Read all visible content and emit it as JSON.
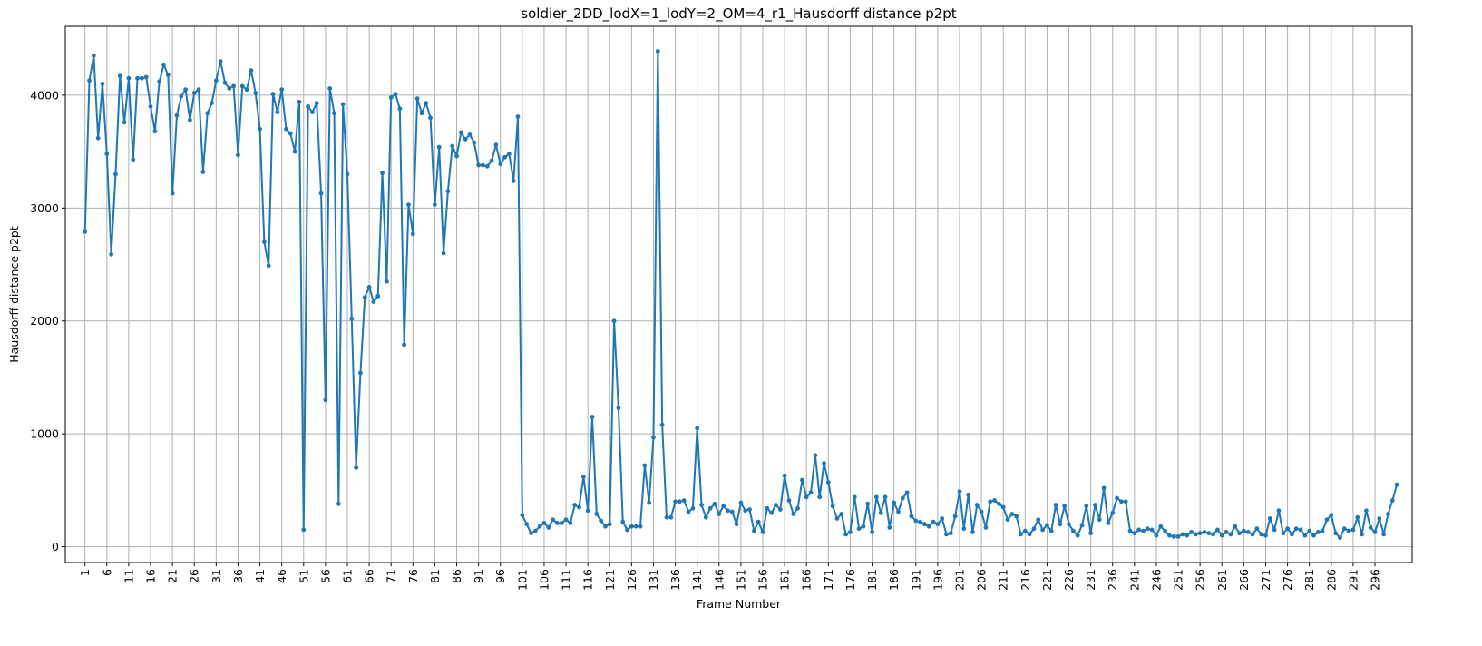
{
  "chart_data": {
    "type": "line",
    "title": "soldier_2DD_lodX=1_lodY=2_OM=4_r1_Hausdorff distance p2pt",
    "xlabel": "Frame Number",
    "ylabel": "Hausdorff distance p2pt",
    "xlim": [
      -3.5,
      304.5
    ],
    "ylim": [
      -140,
      4610
    ],
    "grid": true,
    "series_color": "#1f77b4",
    "x_ticks": [
      1,
      6,
      11,
      16,
      21,
      26,
      31,
      36,
      41,
      46,
      51,
      56,
      61,
      66,
      71,
      76,
      81,
      86,
      91,
      96,
      101,
      106,
      111,
      116,
      121,
      126,
      131,
      136,
      141,
      146,
      151,
      156,
      161,
      166,
      171,
      176,
      181,
      186,
      191,
      196,
      201,
      206,
      211,
      216,
      221,
      226,
      231,
      236,
      241,
      246,
      251,
      256,
      261,
      266,
      271,
      276,
      281,
      286,
      291,
      296
    ],
    "y_ticks": [
      0,
      1000,
      2000,
      3000,
      4000
    ],
    "series": [
      {
        "x_start": 1,
        "values": [
          2790,
          4130,
          4350,
          3620,
          4100,
          3480,
          2590,
          3300,
          4170,
          3760,
          4150,
          3430,
          4150,
          4150,
          4160,
          3900,
          3680,
          4120,
          4270,
          4180,
          3130,
          3820,
          3990,
          4050,
          3780,
          4020,
          4050,
          3320,
          3840,
          3930,
          4130,
          4300,
          4110,
          4060,
          4080,
          3470,
          4080,
          4050,
          4220,
          4020,
          3700,
          2700,
          2490,
          4010,
          3850,
          4050,
          3700,
          3660,
          3500,
          3940,
          150,
          3900,
          3850,
          3930,
          3130,
          1300,
          4060,
          3840,
          380,
          3920,
          3300,
          2020,
          700,
          1540,
          2210,
          2300,
          2170,
          2220,
          3310,
          2350,
          3980,
          4010,
          3880,
          1790,
          3030,
          2770,
          3970,
          3840,
          3930,
          3800,
          3030,
          3540,
          2600,
          3150,
          3550,
          3460,
          3670,
          3610,
          3650,
          3580,
          3380,
          3380,
          3370,
          3420,
          3560,
          3390,
          3450,
          3480,
          3240,
          3810,
          280,
          200,
          120,
          140,
          180,
          210,
          170,
          240,
          210,
          210,
          240,
          210,
          370,
          350,
          620,
          320,
          1150,
          290,
          230,
          180,
          200,
          2000,
          1230,
          220,
          150,
          180,
          180,
          180,
          720,
          390,
          970,
          4390,
          1080,
          260,
          260,
          400,
          400,
          410,
          310,
          340,
          1050,
          370,
          260,
          340,
          380,
          290,
          360,
          320,
          310,
          200,
          390,
          320,
          330,
          140,
          220,
          130,
          340,
          300,
          370,
          330,
          630,
          410,
          290,
          340,
          590,
          440,
          480,
          810,
          440,
          740,
          570,
          360,
          250,
          290,
          110,
          130,
          440,
          160,
          180,
          380,
          130,
          440,
          300,
          440,
          170,
          390,
          310,
          430,
          480,
          270,
          230,
          220,
          200,
          180,
          220,
          200,
          250,
          110,
          120,
          270,
          490,
          160,
          460,
          130,
          370,
          310,
          170,
          400,
          410,
          380,
          350,
          240,
          290,
          270,
          110,
          140,
          110,
          160,
          240,
          150,
          190,
          140,
          370,
          200,
          360,
          200,
          140,
          100,
          190,
          360,
          120,
          370,
          240,
          520,
          210,
          300,
          430,
          400,
          400,
          140,
          120,
          150,
          140,
          160,
          150,
          100,
          180,
          140,
          100,
          90,
          90,
          110,
          100,
          130,
          110,
          120,
          130,
          120,
          110,
          150,
          100,
          130,
          110,
          180,
          120,
          140,
          130,
          110,
          160,
          110,
          100,
          250,
          150,
          320,
          120,
          160,
          110,
          160,
          150,
          100,
          140,
          100,
          130,
          140,
          240,
          280,
          120,
          80,
          160,
          140,
          150,
          260,
          110,
          320,
          170,
          130,
          250,
          110,
          290,
          410,
          550
        ]
      }
    ]
  }
}
